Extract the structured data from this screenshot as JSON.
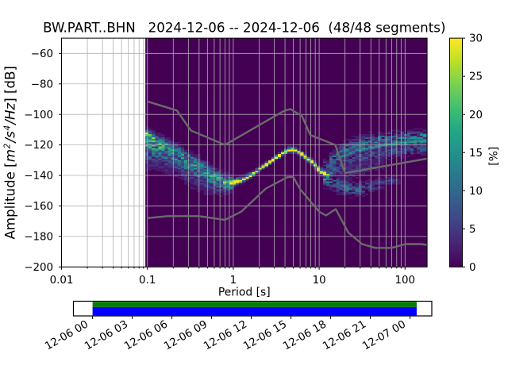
{
  "title": "BW.PART..BHN   2024-12-06 -- 2024-12-06  (48/48 segments)",
  "chart_data": {
    "type": "heatmap",
    "title": "BW.PART..BHN   2024-12-06 -- 2024-12-06  (48/48 segments)",
    "station_id": "BW.PART..BHN",
    "date_start": "2024-12-06",
    "date_end": "2024-12-06",
    "segments_used": 48,
    "segments_total": 48,
    "xlabel": "Period [s]",
    "ylabel_text": "Amplitude [m²/s⁴/Hz] [dB]",
    "ylabel_parts": {
      "prefix": "Amplitude [",
      "math": [
        [
          "m",
          "2"
        ],
        [
          "/s",
          "4"
        ],
        [
          "/Hz",
          ""
        ]
      ],
      "suffix": "] [dB]"
    },
    "x_scale": "log",
    "xlim": [
      0.01,
      179
    ],
    "ylim": [
      -200,
      -50
    ],
    "x_major_ticks": [
      0.01,
      0.1,
      1,
      10,
      100
    ],
    "x_major_labels": [
      "0.01",
      "0.1",
      "1",
      "10",
      "100"
    ],
    "x_minor_ticks": [
      0.02,
      0.03,
      0.04,
      0.05,
      0.06,
      0.07,
      0.08,
      0.09,
      0.2,
      0.3,
      0.4,
      0.5,
      0.6,
      0.7,
      0.8,
      0.9,
      2,
      3,
      4,
      5,
      6,
      7,
      8,
      9,
      20,
      30,
      40,
      50,
      60,
      70,
      80,
      90
    ],
    "y_ticks": [
      -200,
      -180,
      -160,
      -140,
      -120,
      -100,
      -80,
      -60
    ],
    "y_tick_labels": [
      "−200",
      "−180",
      "−160",
      "−140",
      "−120",
      "−100",
      "−80",
      "−60"
    ],
    "grid": true,
    "grid_color": "#b0b0b0",
    "histogram_background": "#440154",
    "colormap": "viridis",
    "histogram": {
      "period_left_edge": 0.0946,
      "bins_per_octave": 8,
      "db_bin_size": 1,
      "percent_quantum": 2.0833,
      "streams": [
        {
          "name": "short-period-band",
          "style": "band",
          "anchors": [
            [
              0.0946,
              -113.5,
              22,
              4,
              13
            ],
            [
              0.13,
              -117.5,
              17,
              4,
              12
            ],
            [
              0.2,
              -123.0,
              14,
              4.5,
              11
            ],
            [
              0.3,
              -129.5,
              13,
              4.5,
              11
            ],
            [
              0.45,
              -136.0,
              13,
              5,
              10
            ],
            [
              0.6,
              -141.0,
              14,
              5,
              8
            ],
            [
              0.8,
              -144.5,
              18,
              4,
              5
            ],
            [
              1.0,
              -145.8,
              24,
              4,
              3.5
            ]
          ]
        },
        {
          "name": "microseism-mode-line",
          "style": "line",
          "anchors": [
            [
              0.9,
              -145.5,
              31,
              3,
              2.5
            ],
            [
              1.3,
              -143.0,
              32,
              2.5,
              2
            ],
            [
              1.7,
              -139.0,
              32,
              2,
              1.8
            ],
            [
              2.2,
              -134.5,
              33,
              2,
              1.6
            ],
            [
              3.0,
              -129.5,
              33,
              2,
              1.6
            ],
            [
              4.0,
              -125.0,
              33,
              2.2,
              1.6
            ],
            [
              4.6,
              -123.3,
              33,
              2.6,
              1.8
            ],
            [
              5.5,
              -124.0,
              33,
              2.2,
              1.8
            ],
            [
              7.0,
              -128.0,
              32,
              2,
              2
            ],
            [
              8.5,
              -132.0,
              32,
              2.2,
              2.4
            ],
            [
              10.0,
              -136.5,
              31,
              2.6,
              2.8
            ],
            [
              12.0,
              -139.5,
              30,
              3,
              3.2
            ],
            [
              13.5,
              -140.5,
              16,
              4,
              4
            ]
          ]
        },
        {
          "name": "long-period-upper-trace",
          "style": "line",
          "anchors": [
            [
              13,
              -135.5,
              9,
              2.5,
              2
            ],
            [
              17,
              -128.5,
              13,
              2.5,
              2
            ],
            [
              25,
              -124.5,
              14,
              2.5,
              2
            ],
            [
              40,
              -121.5,
              15,
              2.5,
              2
            ],
            [
              80,
              -119.0,
              15,
              2.5,
              2.5
            ],
            [
              179,
              -117.3,
              16,
              2.5,
              2.5
            ]
          ]
        },
        {
          "name": "long-period-upper-cloud",
          "style": "cloud",
          "anchors": [
            [
              13,
              -132.0,
              8,
              5,
              3
            ],
            [
              17,
              -125.5,
              9,
              5,
              3
            ],
            [
              25,
              -121.5,
              9,
              5,
              3
            ],
            [
              40,
              -118.5,
              9,
              5,
              3
            ],
            [
              80,
              -116.0,
              9,
              4.5,
              3.5
            ],
            [
              179,
              -114.5,
              10,
              4,
              4
            ]
          ]
        },
        {
          "name": "long-period-under-cloud",
          "style": "cloud",
          "anchors": [
            [
              13,
              -139.5,
              7,
              3,
              4
            ],
            [
              17,
              -133.0,
              7,
              3,
              4
            ],
            [
              25,
              -129.0,
              7,
              3,
              4
            ],
            [
              40,
              -126.0,
              6,
              3,
              4
            ],
            [
              80,
              -123.5,
              6,
              3,
              4
            ],
            [
              179,
              -122.0,
              6,
              3,
              4
            ]
          ]
        },
        {
          "name": "long-period-lower-fan",
          "style": "cloud",
          "anchors": [
            [
              11,
              -142.0,
              10,
              3,
              4
            ],
            [
              15,
              -145.0,
              9,
              4,
              5
            ],
            [
              20,
              -147.5,
              8,
              5,
              5
            ],
            [
              28,
              -149.5,
              7,
              4.5,
              4.5
            ],
            [
              40,
              -147.0,
              6,
              4,
              4
            ],
            [
              60,
              -144.5,
              5,
              3.5,
              3
            ],
            [
              90,
              -143.5,
              4,
              2.5,
              2
            ]
          ]
        },
        {
          "name": "long-period-middle",
          "style": "cloud",
          "anchors": [
            [
              11,
              -134.0,
              6,
              4,
              4
            ],
            [
              20,
              -136.5,
              5,
              5,
              5
            ],
            [
              30,
              -135.5,
              4,
              5,
              5
            ],
            [
              45,
              -133.0,
              3,
              4,
              4
            ],
            [
              60,
              -132.0,
              3,
              3,
              3
            ]
          ]
        }
      ]
    },
    "colorbar": {
      "label": "[%]",
      "ticks": [
        0,
        5,
        10,
        15,
        20,
        25,
        30
      ],
      "vmin": 0,
      "vmax": 30
    },
    "noise_models": {
      "color": "#6a6a6a",
      "nhnm": [
        [
          0.1,
          -91.5
        ],
        [
          0.22,
          -97.4
        ],
        [
          0.32,
          -110.5
        ],
        [
          0.8,
          -120.0
        ],
        [
          3.8,
          -98.0
        ],
        [
          4.6,
          -96.5
        ],
        [
          6.3,
          -101.0
        ],
        [
          7.9,
          -113.5
        ],
        [
          15.4,
          -120.0
        ],
        [
          20.0,
          -138.5
        ],
        [
          179.0,
          -129.0
        ]
      ],
      "nlnm": [
        [
          0.1,
          -168.0
        ],
        [
          0.17,
          -166.7
        ],
        [
          0.4,
          -166.7
        ],
        [
          0.8,
          -169.2
        ],
        [
          1.24,
          -163.7
        ],
        [
          2.4,
          -148.6
        ],
        [
          4.3,
          -141.1
        ],
        [
          5.0,
          -141.1
        ],
        [
          6.0,
          -149.0
        ],
        [
          10.0,
          -163.8
        ],
        [
          12.0,
          -166.2
        ],
        [
          15.6,
          -162.1
        ],
        [
          21.9,
          -177.5
        ],
        [
          31.6,
          -185.0
        ],
        [
          45.0,
          -187.5
        ],
        [
          70.0,
          -187.5
        ],
        [
          101.0,
          -185.0
        ],
        [
          154.0,
          -185.0
        ],
        [
          179.0,
          -185.5
        ]
      ]
    },
    "coverage_timeline": {
      "tick_labels": [
        "12-06 00",
        "12-06 03",
        "12-06 06",
        "12-06 09",
        "12-06 12",
        "12-06 15",
        "12-06 18",
        "12-06 21",
        "12-07 00"
      ],
      "tick_hours": [
        0,
        3,
        6,
        9,
        12,
        15,
        18,
        21,
        24
      ],
      "data_start_hours": 0.0,
      "data_end_hours": 24.5,
      "coverage_color": "#008000",
      "data_color": "#0000ff"
    }
  }
}
